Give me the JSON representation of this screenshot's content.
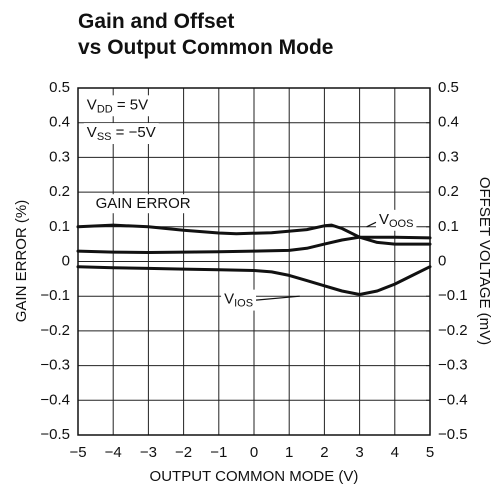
{
  "chart_data": {
    "type": "line",
    "title": [
      "Gain and Offset",
      "vs Output Common Mode"
    ],
    "x_label": "OUTPUT COMMON MODE (V)",
    "y_label": "GAIN ERROR (%)",
    "y2_label": "OFFSET VOLTAGE (mV)",
    "xlim": [
      -5,
      5
    ],
    "xticks": [
      {
        "value": -5,
        "label": "−5"
      },
      {
        "value": -4,
        "label": "−4"
      },
      {
        "value": -3,
        "label": "−3"
      },
      {
        "value": -2,
        "label": "−2"
      },
      {
        "value": -1,
        "label": "−1"
      },
      0,
      1,
      2,
      3,
      4,
      5
    ],
    "ylim": [
      -0.5,
      0.5
    ],
    "yticks": [
      {
        "value": -0.5,
        "label": "−0.5"
      },
      {
        "value": -0.4,
        "label": "−0.4"
      },
      {
        "value": -0.3,
        "label": "−0.3"
      },
      {
        "value": -0.2,
        "label": "−0.2"
      },
      {
        "value": -0.1,
        "label": "−0.1"
      },
      0,
      0.1,
      0.2,
      0.3,
      0.4,
      0.5
    ],
    "y2lim": [
      -0.5,
      0.5
    ],
    "y2ticks": [
      {
        "value": -0.5,
        "label": "−0.5"
      },
      {
        "value": -0.4,
        "label": "−0.4"
      },
      {
        "value": -0.3,
        "label": "−0.3"
      },
      {
        "value": -0.2,
        "label": "−0.2"
      },
      {
        "value": -0.1,
        "label": "−0.1"
      },
      0,
      0.1,
      0.2,
      0.3,
      0.4,
      0.5
    ],
    "grid": true,
    "annotations": [
      {
        "text": "V",
        "sub": "DD",
        "rest": " = 5V"
      },
      {
        "text": "V",
        "sub": "SS",
        "rest": " = −5V"
      }
    ],
    "series": [
      {
        "name": "GAIN ERROR",
        "color": "#111111",
        "axis": "y",
        "x": [
          -5,
          -4,
          -3,
          -2,
          -1,
          -0.5,
          0.5,
          1.5,
          2,
          2.2,
          2.5,
          3,
          3.5,
          4,
          5
        ],
        "values": [
          0.1,
          0.105,
          0.1,
          0.09,
          0.082,
          0.08,
          0.083,
          0.092,
          0.103,
          0.105,
          0.095,
          0.07,
          0.055,
          0.05,
          0.05
        ]
      },
      {
        "name": "V",
        "name_sub": "OOS",
        "color": "#111111",
        "axis": "y2",
        "x": [
          -5,
          -4,
          -3,
          -2,
          -1,
          0,
          1,
          1.5,
          2,
          2.5,
          3,
          4,
          5
        ],
        "values": [
          0.03,
          0.027,
          0.026,
          0.027,
          0.028,
          0.03,
          0.032,
          0.038,
          0.05,
          0.062,
          0.07,
          0.07,
          0.068
        ]
      },
      {
        "name": "V",
        "name_sub": "IOS",
        "color": "#111111",
        "axis": "y2",
        "x": [
          -5,
          -4,
          -3,
          -2,
          -1,
          0,
          0.5,
          1,
          1.5,
          2,
          2.5,
          3,
          3.5,
          4,
          4.5,
          5
        ],
        "values": [
          -0.015,
          -0.018,
          -0.02,
          -0.022,
          -0.024,
          -0.026,
          -0.03,
          -0.04,
          -0.055,
          -0.07,
          -0.085,
          -0.095,
          -0.085,
          -0.065,
          -0.04,
          -0.015
        ]
      }
    ]
  }
}
